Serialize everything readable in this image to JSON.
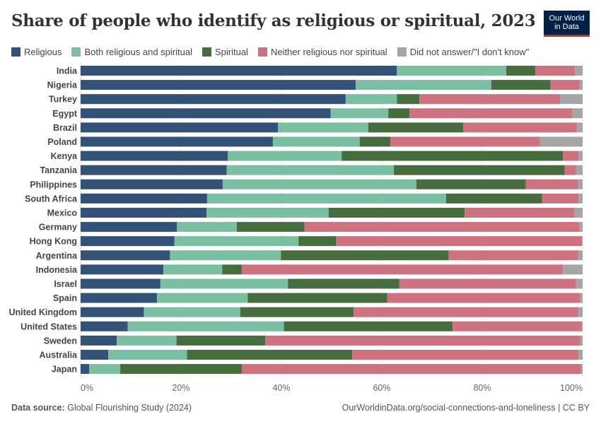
{
  "header": {
    "title": "Share of people who identify as religious or spiritual, 2023",
    "logo": [
      "Our World",
      "in Data"
    ]
  },
  "footer": {
    "source_label": "Data source:",
    "source": "Global Flourishing Study (2024)",
    "link": "OurWorldinData.org/social-connections-and-loneliness | CC BY"
  },
  "chart_data": {
    "type": "bar",
    "orientation": "horizontal",
    "stacked": true,
    "title": "Share of people who identify as religious or spiritual, 2023",
    "xlim": [
      0,
      100
    ],
    "x_ticks": [
      "0%",
      "20%",
      "40%",
      "60%",
      "80%",
      "100%"
    ],
    "grid": true,
    "legend_position": "top",
    "categories": [
      "India",
      "Nigeria",
      "Turkey",
      "Egypt",
      "Brazil",
      "Poland",
      "Kenya",
      "Tanzania",
      "Philippines",
      "South Africa",
      "Mexico",
      "Germany",
      "Hong Kong",
      "Argentina",
      "Indonesia",
      "Israel",
      "Spain",
      "United Kingdom",
      "United States",
      "Sweden",
      "Australia",
      "Japan"
    ],
    "series": [
      {
        "name": "Religious",
        "color": "#345178",
        "values": [
          63.0,
          54.8,
          52.8,
          49.8,
          39.3,
          38.3,
          29.3,
          29.1,
          28.3,
          25.2,
          25.1,
          19.2,
          18.7,
          17.8,
          16.5,
          15.9,
          15.2,
          12.6,
          9.4,
          7.2,
          5.5,
          1.7
        ]
      },
      {
        "name": "Both religious and spiritual",
        "color": "#7bbfa2",
        "values": [
          21.8,
          27.0,
          10.2,
          11.5,
          18.0,
          17.3,
          22.7,
          33.3,
          38.6,
          47.6,
          24.3,
          11.9,
          24.7,
          22.1,
          11.7,
          25.4,
          18.1,
          19.2,
          31.1,
          11.9,
          15.7,
          6.2
        ]
      },
      {
        "name": "Spiritual",
        "color": "#476d3e",
        "values": [
          5.8,
          11.8,
          4.5,
          4.2,
          18.9,
          6.1,
          44.1,
          34.0,
          21.8,
          19.1,
          27.1,
          13.5,
          7.5,
          33.4,
          3.9,
          22.2,
          27.8,
          22.6,
          33.6,
          17.7,
          32.9,
          24.2
        ]
      },
      {
        "name": "Neither religious nor spiritual",
        "color": "#cf7280",
        "values": [
          7.9,
          5.8,
          28.0,
          32.4,
          22.6,
          29.8,
          3.1,
          2.3,
          10.4,
          7.3,
          21.9,
          54.8,
          49.0,
          25.8,
          64.0,
          35.2,
          38.4,
          44.7,
          25.7,
          62.7,
          45.1,
          67.6
        ]
      },
      {
        "name": "Did not answer/\"I don't know\"",
        "color": "#a5a5a5",
        "values": [
          1.5,
          0.6,
          4.5,
          2.1,
          1.2,
          8.5,
          0.8,
          1.3,
          0.9,
          0.8,
          1.6,
          0.6,
          0.1,
          0.9,
          3.9,
          1.3,
          0.5,
          0.9,
          0.2,
          0.5,
          0.8,
          0.3
        ]
      }
    ]
  }
}
